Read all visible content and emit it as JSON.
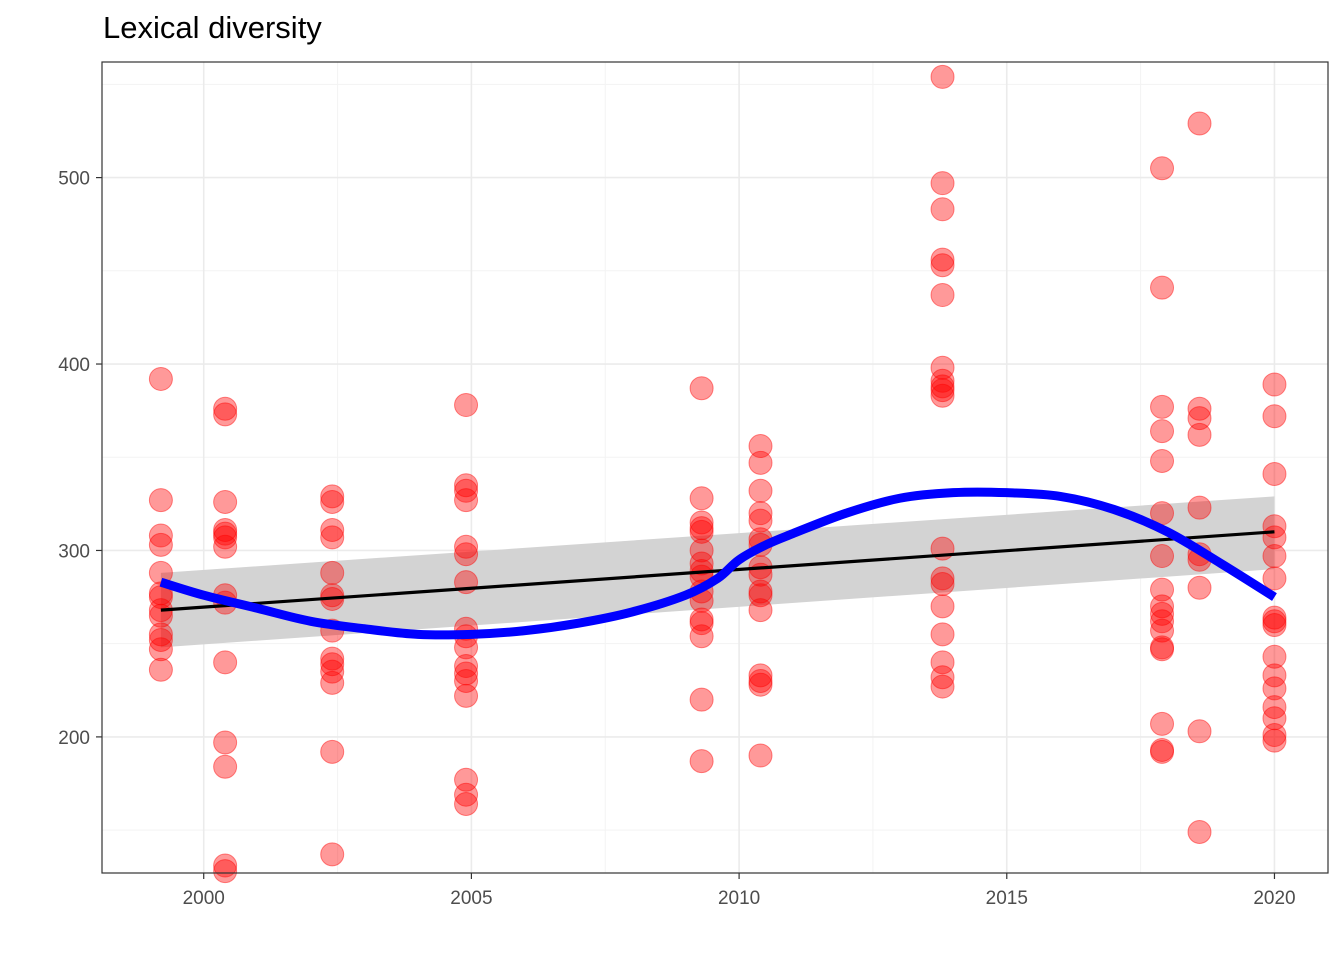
{
  "chart_data": {
    "type": "scatter",
    "title": "Lexical diversity",
    "xlabel": "",
    "ylabel": "",
    "xlim": [
      1998.1,
      2021.0
    ],
    "ylim": [
      127,
      562
    ],
    "x_ticks": [
      2000,
      2005,
      2010,
      2015,
      2020
    ],
    "x_tick_labels": [
      "2000",
      "2005",
      "2010",
      "2015",
      "2020"
    ],
    "y_ticks": [
      200,
      300,
      400,
      500
    ],
    "y_tick_labels": [
      "200",
      "300",
      "400",
      "500"
    ],
    "grid": true,
    "legend": "none",
    "colors": {
      "points": "#ff0000",
      "lm_line": "#000000",
      "lm_ribbon": "#d3d3d3",
      "smooth_line": "#0000ff",
      "grid_major": "#ebebeb",
      "grid_minor": "#f3f3f3",
      "border": "#333333",
      "tick_text": "#4d4d4d"
    },
    "points": [
      {
        "x": 1999.2,
        "y": [
          392,
          327,
          308,
          303,
          288,
          277,
          275,
          268,
          265,
          255,
          252,
          247,
          236
        ]
      },
      {
        "x": 2000.4,
        "y": [
          376,
          373,
          326,
          311,
          309,
          307,
          302,
          276,
          272,
          240,
          197,
          184,
          131,
          128
        ]
      },
      {
        "x": 2002.4,
        "y": [
          329,
          326,
          311,
          307,
          288,
          276,
          274,
          257,
          242,
          239,
          235,
          229,
          192,
          137
        ]
      },
      {
        "x": 2004.9,
        "y": [
          378,
          335,
          332,
          327,
          302,
          298,
          283,
          258,
          254,
          248,
          238,
          234,
          230,
          222,
          177,
          169,
          164
        ]
      },
      {
        "x": 2009.3,
        "y": [
          387,
          328,
          315,
          312,
          310,
          300,
          293,
          289,
          286,
          278,
          273,
          263,
          261,
          254,
          220,
          187
        ]
      },
      {
        "x": 2010.4,
        "y": [
          356,
          347,
          332,
          320,
          316,
          306,
          303,
          291,
          287,
          278,
          276,
          268,
          233,
          230,
          228,
          190
        ]
      },
      {
        "x": 2013.8,
        "y": [
          554,
          497,
          483,
          456,
          453,
          437,
          398,
          391,
          388,
          386,
          383,
          301,
          285,
          282,
          270,
          255,
          240,
          232,
          227
        ]
      },
      {
        "x": 2017.9,
        "y": [
          505,
          441,
          377,
          364,
          348,
          320,
          297,
          279,
          270,
          266,
          262,
          257,
          248,
          247,
          207,
          193,
          192
        ]
      },
      {
        "x": 2018.6,
        "y": [
          529,
          376,
          371,
          362,
          323,
          298,
          295,
          280,
          203,
          149
        ]
      },
      {
        "x": 2020.0,
        "y": [
          389,
          372,
          341,
          313,
          307,
          297,
          285,
          264,
          262,
          260,
          243,
          233,
          226,
          216,
          210,
          201,
          198
        ]
      }
    ],
    "lm_fit": {
      "x": [
        1999.2,
        2020.0
      ],
      "y": [
        268,
        310
      ]
    },
    "lm_ci": {
      "x": [
        1999.2,
        2020.0
      ],
      "upper": [
        288,
        329
      ],
      "lower": [
        248,
        290
      ]
    },
    "smooth_fit": {
      "x": [
        1999.2,
        2000,
        2001,
        2002,
        2003,
        2004,
        2005,
        2006,
        2007,
        2008,
        2009,
        2009.6,
        2010,
        2010.5,
        2011,
        2012,
        2013,
        2014,
        2015,
        2016,
        2017,
        2018,
        2019,
        2020
      ],
      "y": [
        283,
        276,
        269,
        262,
        258,
        255,
        255,
        257,
        261,
        267,
        276,
        285,
        295,
        303,
        309,
        320,
        328,
        331,
        331,
        329,
        322,
        310,
        293,
        275
      ]
    }
  }
}
